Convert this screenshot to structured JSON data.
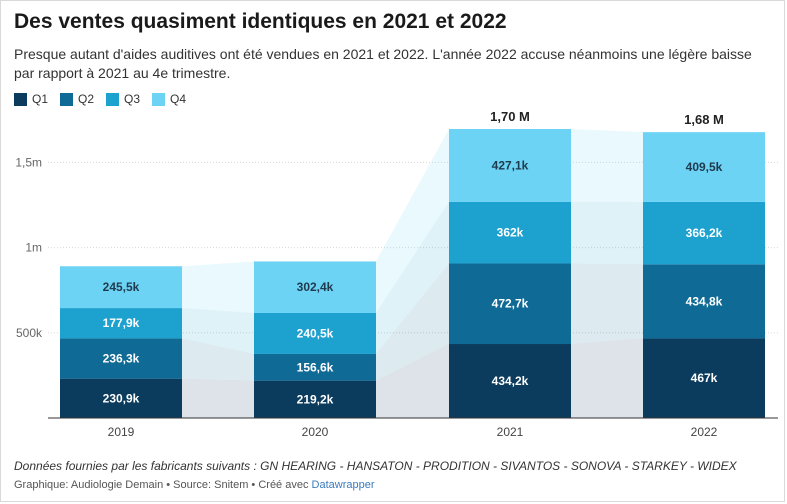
{
  "title": "Des ventes quasiment identiques en 2021 et 2022",
  "subtitle": "Presque autant d'aides auditives ont été vendues en 2021 et 2022. L'année 2022 accuse néanmoins une légère baisse par rapport à 2021 au 4e trimestre.",
  "legend": [
    {
      "label": "Q1",
      "color": "#0b3c5d"
    },
    {
      "label": "Q2",
      "color": "#0f6a96"
    },
    {
      "label": "Q3",
      "color": "#1da1cf"
    },
    {
      "label": "Q4",
      "color": "#6dd3f5"
    }
  ],
  "chart_data": {
    "type": "bar",
    "stacked": true,
    "categories": [
      "2019",
      "2020",
      "2021",
      "2022"
    ],
    "series": [
      {
        "name": "Q1",
        "values": [
          230.9,
          219.2,
          434.2,
          467
        ],
        "labels": [
          "230,9k",
          "219,2k",
          "434,2k",
          "467k"
        ],
        "color": "#0b3c5d"
      },
      {
        "name": "Q2",
        "values": [
          236.3,
          156.6,
          472.7,
          434.8
        ],
        "labels": [
          "236,3k",
          "156,6k",
          "472,7k",
          "434,8k"
        ],
        "color": "#0f6a96"
      },
      {
        "name": "Q3",
        "values": [
          177.9,
          240.5,
          362,
          366.2
        ],
        "labels": [
          "177,9k",
          "240,5k",
          "362k",
          "366,2k"
        ],
        "color": "#1da1cf"
      },
      {
        "name": "Q4",
        "values": [
          245.5,
          302.4,
          427.1,
          409.5
        ],
        "labels": [
          "245,5k",
          "302,4k",
          "427,1k",
          "409,5k"
        ],
        "color": "#6dd3f5"
      }
    ],
    "totals": [
      {
        "category": "2021",
        "label": "1,70 M"
      },
      {
        "category": "2022",
        "label": "1,68 M"
      }
    ],
    "yticks": [
      {
        "value": 500000,
        "label": "500k"
      },
      {
        "value": 1000000,
        "label": "1m"
      },
      {
        "value": 1500000,
        "label": "1,5m"
      }
    ],
    "ylim": [
      0,
      1700000
    ],
    "grid": true,
    "value_unit": "thousands"
  },
  "notes": "Données fournies par les fabricants suivants : GN HEARING - HANSATON - PRODITION - SIVANTOS - SONOVA - STARKEY - WIDEX",
  "credits": {
    "prefix": "Graphique: Audiologie Demain • Source: Snitem • Créé avec ",
    "link": "Datawrapper"
  }
}
